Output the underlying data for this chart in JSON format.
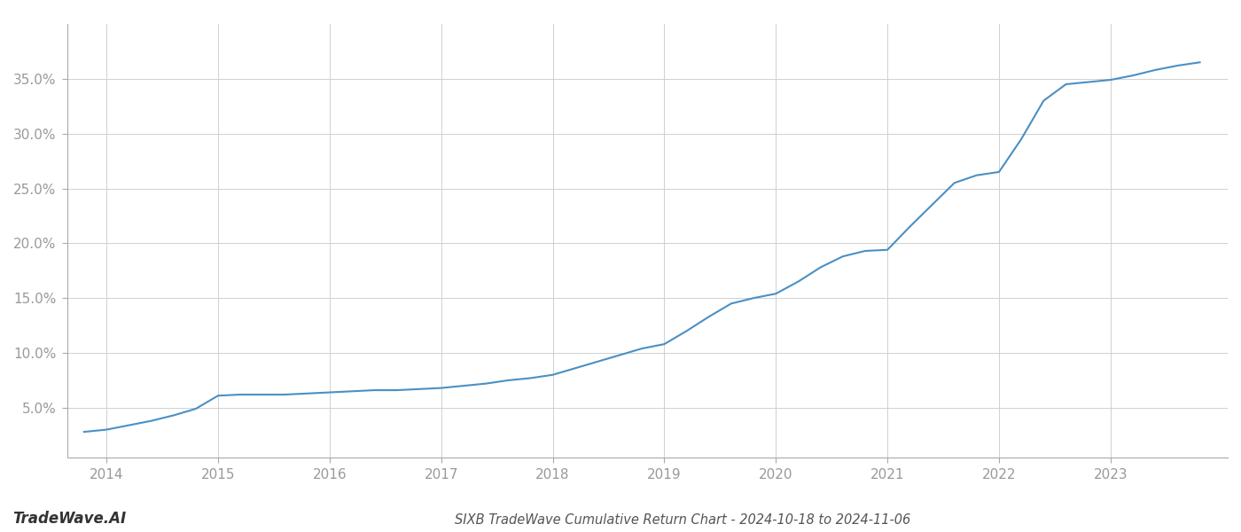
{
  "title": "SIXB TradeWave Cumulative Return Chart - 2024-10-18 to 2024-11-06",
  "watermark": "TradeWave.AI",
  "line_color": "#4a90c4",
  "background_color": "#ffffff",
  "grid_color": "#d0d0d0",
  "x_values": [
    2013.8,
    2014.0,
    2014.2,
    2014.4,
    2014.6,
    2014.8,
    2015.0,
    2015.2,
    2015.4,
    2015.6,
    2015.8,
    2016.0,
    2016.2,
    2016.4,
    2016.6,
    2016.8,
    2017.0,
    2017.2,
    2017.4,
    2017.6,
    2017.8,
    2018.0,
    2018.2,
    2018.4,
    2018.6,
    2018.8,
    2019.0,
    2019.2,
    2019.4,
    2019.6,
    2019.8,
    2020.0,
    2020.2,
    2020.4,
    2020.6,
    2020.8,
    2021.0,
    2021.2,
    2021.4,
    2021.6,
    2021.8,
    2022.0,
    2022.2,
    2022.4,
    2022.6,
    2022.8,
    2023.0,
    2023.2,
    2023.4,
    2023.6,
    2023.8
  ],
  "y_values": [
    2.8,
    3.0,
    3.4,
    3.8,
    4.3,
    4.9,
    6.1,
    6.2,
    6.2,
    6.2,
    6.3,
    6.4,
    6.5,
    6.6,
    6.6,
    6.7,
    6.8,
    7.0,
    7.2,
    7.5,
    7.7,
    8.0,
    8.6,
    9.2,
    9.8,
    10.4,
    10.8,
    12.0,
    13.3,
    14.5,
    15.0,
    15.4,
    16.5,
    17.8,
    18.8,
    19.3,
    19.4,
    21.5,
    23.5,
    25.5,
    26.2,
    26.5,
    29.5,
    33.0,
    34.5,
    34.7,
    34.9,
    35.3,
    35.8,
    36.2,
    36.5
  ],
  "xlim": [
    2013.65,
    2024.05
  ],
  "ylim": [
    0.5,
    40.0
  ],
  "yticks": [
    5.0,
    10.0,
    15.0,
    20.0,
    25.0,
    30.0,
    35.0
  ],
  "xticks": [
    2014,
    2015,
    2016,
    2017,
    2018,
    2019,
    2020,
    2021,
    2022,
    2023
  ],
  "line_width": 1.5,
  "title_fontsize": 10.5,
  "watermark_fontsize": 12,
  "tick_fontsize": 11,
  "tick_color": "#999999"
}
